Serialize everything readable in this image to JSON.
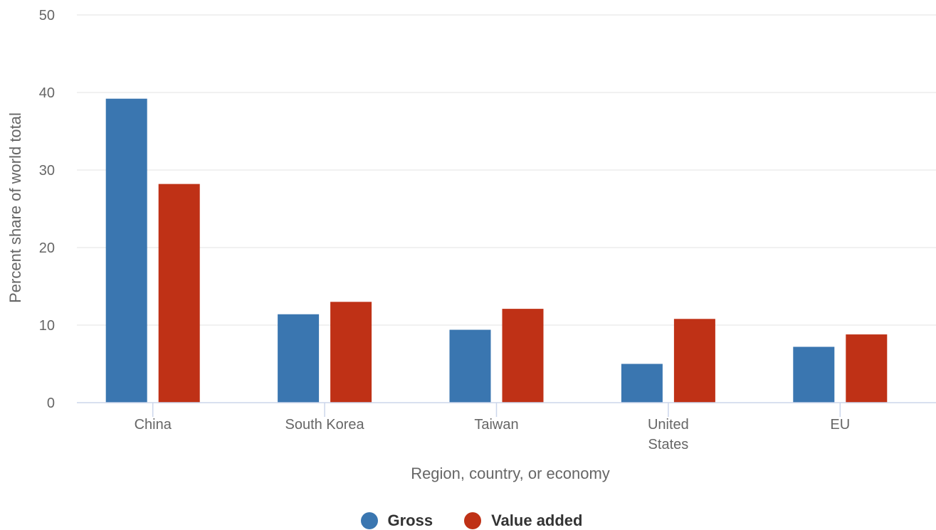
{
  "chart_data": {
    "type": "bar",
    "categories": [
      [
        "China"
      ],
      [
        "South Korea"
      ],
      [
        "Taiwan"
      ],
      [
        "United",
        "States"
      ],
      [
        "EU"
      ]
    ],
    "series": [
      {
        "name": "Gross",
        "color": "#3a76b0",
        "values": [
          39.2,
          11.4,
          9.4,
          5.0,
          7.2
        ]
      },
      {
        "name": "Value added",
        "color": "#bf3116",
        "values": [
          28.2,
          13.0,
          12.1,
          10.8,
          8.8
        ]
      }
    ],
    "xlabel": "Region, country, or economy",
    "ylabel": "Percent share of world total",
    "ylim": [
      0,
      50
    ],
    "yticks": [
      0,
      10,
      20,
      30,
      40,
      50
    ],
    "grid": true,
    "legend_position": "bottom"
  }
}
